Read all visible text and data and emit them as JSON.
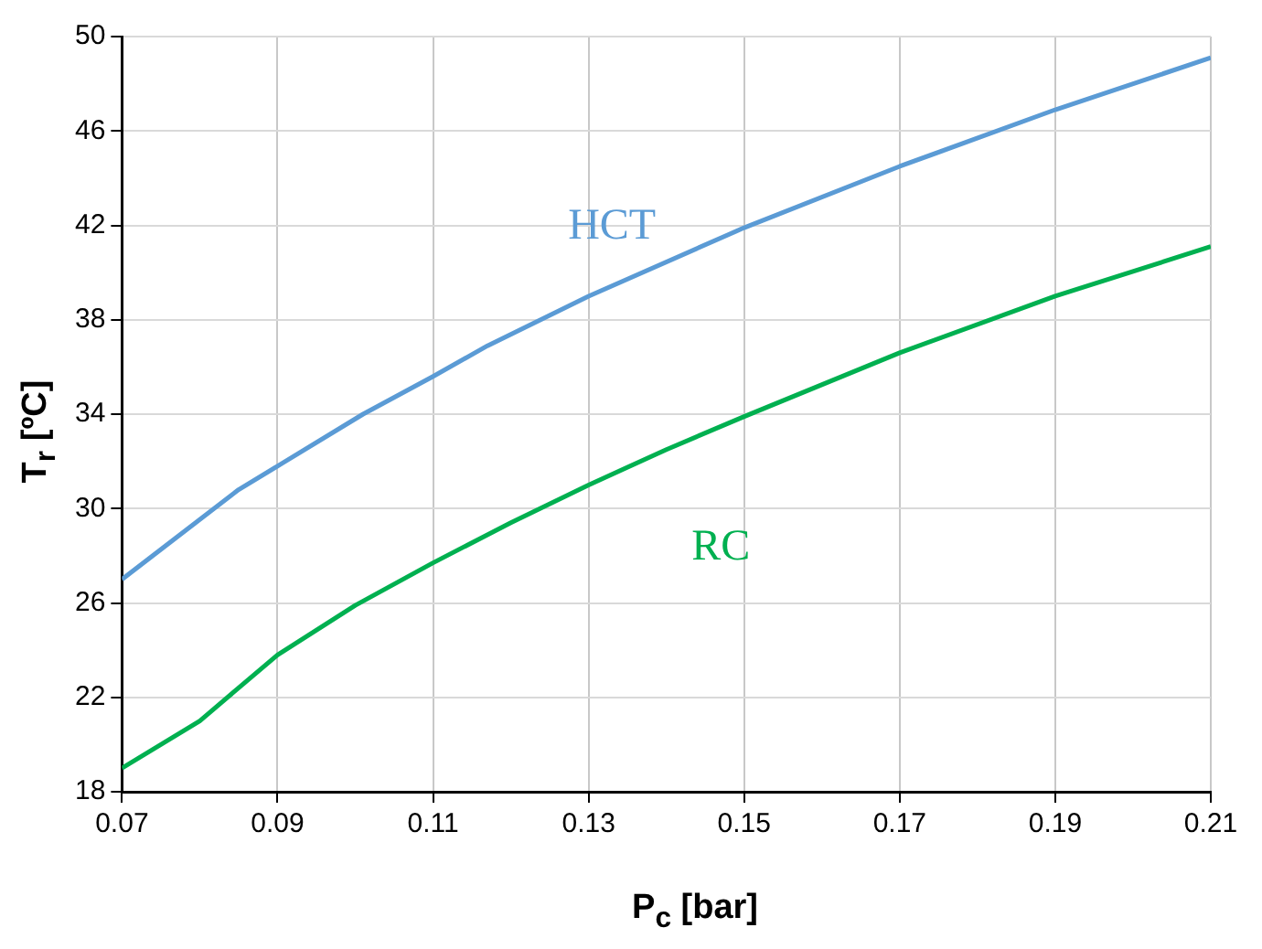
{
  "chart_data": {
    "type": "line",
    "xlabel": "P$_{c}$ [bar]",
    "ylabel": "T$_{r}$ [ºC]",
    "series": [
      {
        "name": "HCT",
        "color": "#5b9bd5",
        "x": [
          0.07,
          0.085,
          0.09,
          0.101,
          0.11,
          0.117,
          0.13,
          0.15,
          0.17,
          0.19,
          0.21
        ],
        "values": [
          27.0,
          30.8,
          31.8,
          34.0,
          35.6,
          36.9,
          39.0,
          41.9,
          44.5,
          46.9,
          49.1
        ]
      },
      {
        "name": "RC",
        "color": "#00b050",
        "x": [
          0.07,
          0.08,
          0.09,
          0.1,
          0.11,
          0.12,
          0.13,
          0.14,
          0.15,
          0.17,
          0.19,
          0.21
        ],
        "values": [
          19.0,
          21.0,
          23.8,
          25.9,
          27.7,
          29.4,
          31.0,
          32.5,
          33.9,
          36.6,
          39.0,
          41.1
        ]
      }
    ],
    "xlim": [
      0.07,
      0.21
    ],
    "xticks": [
      0.07,
      0.09,
      0.11,
      0.13,
      0.15,
      0.17,
      0.19,
      0.21
    ],
    "ylim": [
      18,
      50
    ],
    "yticks": [
      18,
      22,
      26,
      30,
      34,
      38,
      42,
      46,
      50
    ],
    "grid": true,
    "legend": false,
    "marker": "none",
    "line_style": "solid"
  }
}
